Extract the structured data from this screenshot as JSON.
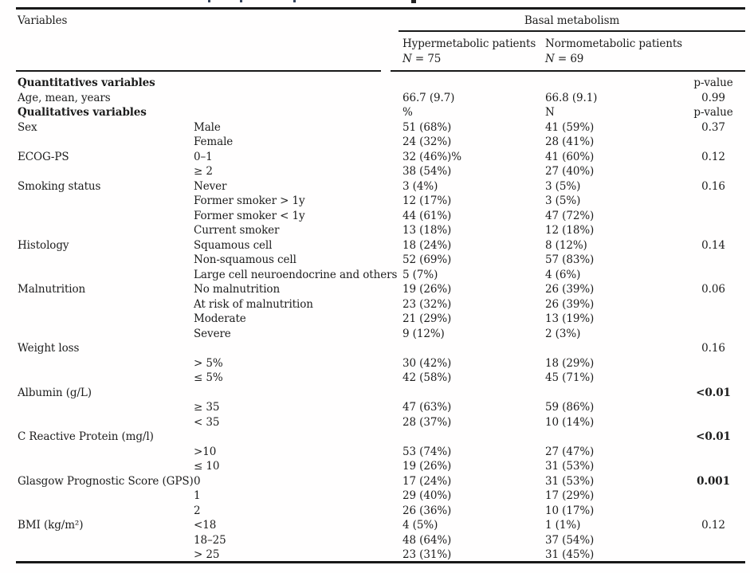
{
  "header": {
    "variables_label": "Variables",
    "span_label": "Basal metabolism",
    "col_hyper": {
      "line1": "Hypermetabolic patients",
      "n_italic": "N",
      "n_rest": " = 75"
    },
    "col_normo": {
      "line1": "Normometabolic patients",
      "n_italic": "N",
      "n_rest": " = 69"
    }
  },
  "table": {
    "columns": [
      "Variables",
      "",
      "Hypermetabolic patients N = 75",
      "Normometabolic patients N = 69",
      "p-value"
    ],
    "rows": [
      {
        "variable": "Quantitatives variables",
        "variable_bold": true,
        "category": "",
        "hyper": "",
        "normo": "",
        "p": "p-value",
        "p_bold": false
      },
      {
        "variable": "Age, mean, years",
        "variable_bold": false,
        "category": "",
        "hyper": "66.7 (9.7)",
        "normo": "66.8 (9.1)",
        "p": "0.99",
        "p_bold": false
      },
      {
        "variable": "Qualitatives variables",
        "variable_bold": true,
        "category": "",
        "hyper": "%",
        "normo": "N",
        "p": "p-value",
        "p_bold": false
      },
      {
        "variable": "Sex",
        "variable_bold": false,
        "category": "Male",
        "hyper": "51 (68%)",
        "normo": "41 (59%)",
        "p": "0.37",
        "p_bold": false
      },
      {
        "variable": "",
        "variable_bold": false,
        "category": "Female",
        "hyper": "24 (32%)",
        "normo": "28 (41%)",
        "p": "",
        "p_bold": false
      },
      {
        "variable": "ECOG-PS",
        "variable_bold": false,
        "category": "0–1",
        "hyper": "32 (46%)%",
        "normo": "41 (60%)",
        "p": "0.12",
        "p_bold": false
      },
      {
        "variable": "",
        "variable_bold": false,
        "category": "≥ 2",
        "hyper": "38 (54%)",
        "normo": "27 (40%)",
        "p": "",
        "p_bold": false
      },
      {
        "variable": "Smoking status",
        "variable_bold": false,
        "category": "Never",
        "hyper": "3 (4%)",
        "normo": "3 (5%)",
        "p": "0.16",
        "p_bold": false
      },
      {
        "variable": "",
        "variable_bold": false,
        "category": "Former smoker > 1y",
        "hyper": "12 (17%)",
        "normo": "3 (5%)",
        "p": "",
        "p_bold": false
      },
      {
        "variable": "",
        "variable_bold": false,
        "category": "Former smoker < 1y",
        "hyper": "44 (61%)",
        "normo": "47 (72%)",
        "p": "",
        "p_bold": false
      },
      {
        "variable": "",
        "variable_bold": false,
        "category": "Current smoker",
        "hyper": "13 (18%)",
        "normo": "12 (18%)",
        "p": "",
        "p_bold": false
      },
      {
        "variable": "Histology",
        "variable_bold": false,
        "category": "Squamous cell",
        "hyper": "18 (24%)",
        "normo": "8 (12%)",
        "p": "0.14",
        "p_bold": false
      },
      {
        "variable": "",
        "variable_bold": false,
        "category": "Non-squamous cell",
        "hyper": "52 (69%)",
        "normo": "57 (83%)",
        "p": "",
        "p_bold": false
      },
      {
        "variable": "",
        "variable_bold": false,
        "category": "Large cell neuroendocrine and others",
        "hyper": "5 (7%)",
        "normo": "4 (6%)",
        "p": "",
        "p_bold": false
      },
      {
        "variable": "Malnutrition",
        "variable_bold": false,
        "category": "No malnutrition",
        "hyper": "19 (26%)",
        "normo": "26 (39%)",
        "p": "0.06",
        "p_bold": false
      },
      {
        "variable": "",
        "variable_bold": false,
        "category": "At risk of malnutrition",
        "hyper": "23 (32%)",
        "normo": "26 (39%)",
        "p": "",
        "p_bold": false
      },
      {
        "variable": "",
        "variable_bold": false,
        "category": "Moderate",
        "hyper": "21 (29%)",
        "normo": "13 (19%)",
        "p": "",
        "p_bold": false
      },
      {
        "variable": "",
        "variable_bold": false,
        "category": "Severe",
        "hyper": "9 (12%)",
        "normo": "2 (3%)",
        "p": "",
        "p_bold": false
      },
      {
        "variable": "Weight loss",
        "variable_bold": false,
        "category": "",
        "hyper": "",
        "normo": "",
        "p": "0.16",
        "p_bold": false
      },
      {
        "variable": "",
        "variable_bold": false,
        "category": "> 5%",
        "hyper": "30 (42%)",
        "normo": "18 (29%)",
        "p": "",
        "p_bold": false
      },
      {
        "variable": "",
        "variable_bold": false,
        "category": "≤ 5%",
        "hyper": "42 (58%)",
        "normo": "45 (71%)",
        "p": "",
        "p_bold": false
      },
      {
        "variable": "Albumin (g/L)",
        "variable_bold": false,
        "category": "",
        "hyper": "",
        "normo": "",
        "p": "<0.01",
        "p_bold": true
      },
      {
        "variable": "",
        "variable_bold": false,
        "category": "≥ 35",
        "hyper": "47 (63%)",
        "normo": "59 (86%)",
        "p": "",
        "p_bold": false
      },
      {
        "variable": "",
        "variable_bold": false,
        "category": "< 35",
        "hyper": "28 (37%)",
        "normo": "10 (14%)",
        "p": "",
        "p_bold": false
      },
      {
        "variable": "C Reactive Protein (mg/l)",
        "variable_bold": false,
        "category": "",
        "hyper": "",
        "normo": "",
        "p": "<0.01",
        "p_bold": true
      },
      {
        "variable": "",
        "variable_bold": false,
        "category": ">10",
        "hyper": "53 (74%)",
        "normo": "27 (47%)",
        "p": "",
        "p_bold": false
      },
      {
        "variable": "",
        "variable_bold": false,
        "category": "≤ 10",
        "hyper": "19 (26%)",
        "normo": "31 (53%)",
        "p": "",
        "p_bold": false
      },
      {
        "variable": "Glasgow Prognostic Score (GPS)",
        "variable_bold": false,
        "category": "0",
        "hyper": "17 (24%)",
        "normo": "31 (53%)",
        "p": "0.001",
        "p_bold": true
      },
      {
        "variable": "",
        "variable_bold": false,
        "category": "1",
        "hyper": "29 (40%)",
        "normo": "17 (29%)",
        "p": "",
        "p_bold": false
      },
      {
        "variable": "",
        "variable_bold": false,
        "category": "2",
        "hyper": "26 (36%)",
        "normo": "10 (17%)",
        "p": "",
        "p_bold": false
      },
      {
        "variable": "BMI (kg/m²)",
        "variable_bold": false,
        "category": "<18",
        "hyper": "4 (5%)",
        "normo": "1 (1%)",
        "p": "0.12",
        "p_bold": false
      },
      {
        "variable": "",
        "variable_bold": false,
        "category": "18–25",
        "hyper": "48 (64%)",
        "normo": "37 (54%)",
        "p": "",
        "p_bold": false
      },
      {
        "variable": "",
        "variable_bold": false,
        "category": "> 25",
        "hyper": "23 (31%)",
        "normo": "31 (45%)",
        "p": "",
        "p_bold": false
      }
    ]
  },
  "colors": {
    "text": "#1c1c1c",
    "rule": "#181818",
    "background": "#fffefe"
  }
}
